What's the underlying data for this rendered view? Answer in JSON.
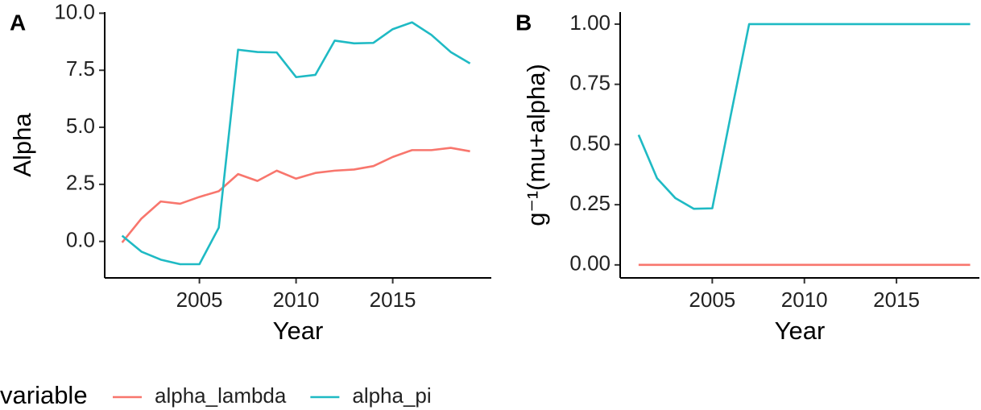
{
  "chart_data": [
    {
      "type": "line",
      "tag": "A",
      "x_label": "Year",
      "y_label": "Alpha",
      "x": [
        2001,
        2002,
        2003,
        2004,
        2005,
        2006,
        2007,
        2008,
        2009,
        2010,
        2011,
        2012,
        2013,
        2014,
        2015,
        2016,
        2017,
        2018,
        2019
      ],
      "series": [
        {
          "name": "alpha_lambda",
          "color": "#F8766D",
          "values": [
            -0.05,
            1.0,
            1.75,
            1.65,
            1.95,
            2.2,
            2.95,
            2.65,
            3.1,
            2.75,
            3.0,
            3.1,
            3.15,
            3.3,
            3.7,
            4.0,
            4.0,
            4.1,
            3.95
          ]
        },
        {
          "name": "alpha_pi",
          "color": "#1FBAC4",
          "values": [
            0.25,
            -0.45,
            -0.8,
            -1.0,
            -1.0,
            0.6,
            8.4,
            8.3,
            8.28,
            7.2,
            7.3,
            8.8,
            8.68,
            8.7,
            9.3,
            9.6,
            9.05,
            8.3,
            7.8
          ]
        }
      ],
      "xlim": [
        2000.1,
        2020.1
      ],
      "xticks": [
        2005,
        2010,
        2015
      ],
      "ylim": [
        -1.6,
        10.05
      ],
      "yticks": [
        {
          "value": 0,
          "label": "0.0"
        },
        {
          "value": 2.5,
          "label": "2.5"
        },
        {
          "value": 5,
          "label": "5.0"
        },
        {
          "value": 7.5,
          "label": "7.5"
        },
        {
          "value": 10,
          "label": "10.0"
        }
      ]
    },
    {
      "type": "line",
      "tag": "B",
      "x_label": "Year",
      "y_label": "g⁻¹(mu+alpha)",
      "x": [
        2001,
        2002,
        2003,
        2004,
        2005,
        2006,
        2007,
        2008,
        2009,
        2010,
        2011,
        2012,
        2013,
        2014,
        2015,
        2016,
        2017,
        2018,
        2019
      ],
      "series": [
        {
          "color": "#F8766D",
          "values": [
            0,
            0,
            0,
            0,
            0,
            0,
            0,
            0,
            0,
            0,
            0,
            0,
            0,
            0,
            0,
            0,
            0,
            0,
            0
          ]
        },
        {
          "color": "#1FBAC4",
          "values": [
            0.54,
            0.36,
            0.277,
            0.233,
            0.235,
            0.62,
            1.0,
            1.0,
            1.0,
            1.0,
            1.0,
            1.0,
            1.0,
            1.0,
            1.0,
            1.0,
            1.0,
            1.0,
            1.0
          ]
        }
      ],
      "xlim": [
        2000,
        2019.5
      ],
      "xticks": [
        2005,
        2010,
        2015
      ],
      "ylim": [
        -0.054,
        1.05
      ],
      "yticks": [
        {
          "value": 0,
          "label": "0.00"
        },
        {
          "value": 0.25,
          "label": "0.25"
        },
        {
          "value": 0.5,
          "label": "0.50"
        },
        {
          "value": 0.75,
          "label": "0.75"
        },
        {
          "value": 1,
          "label": "1.00"
        }
      ]
    }
  ],
  "legend": {
    "title": "variable",
    "position": "bottom-left"
  }
}
